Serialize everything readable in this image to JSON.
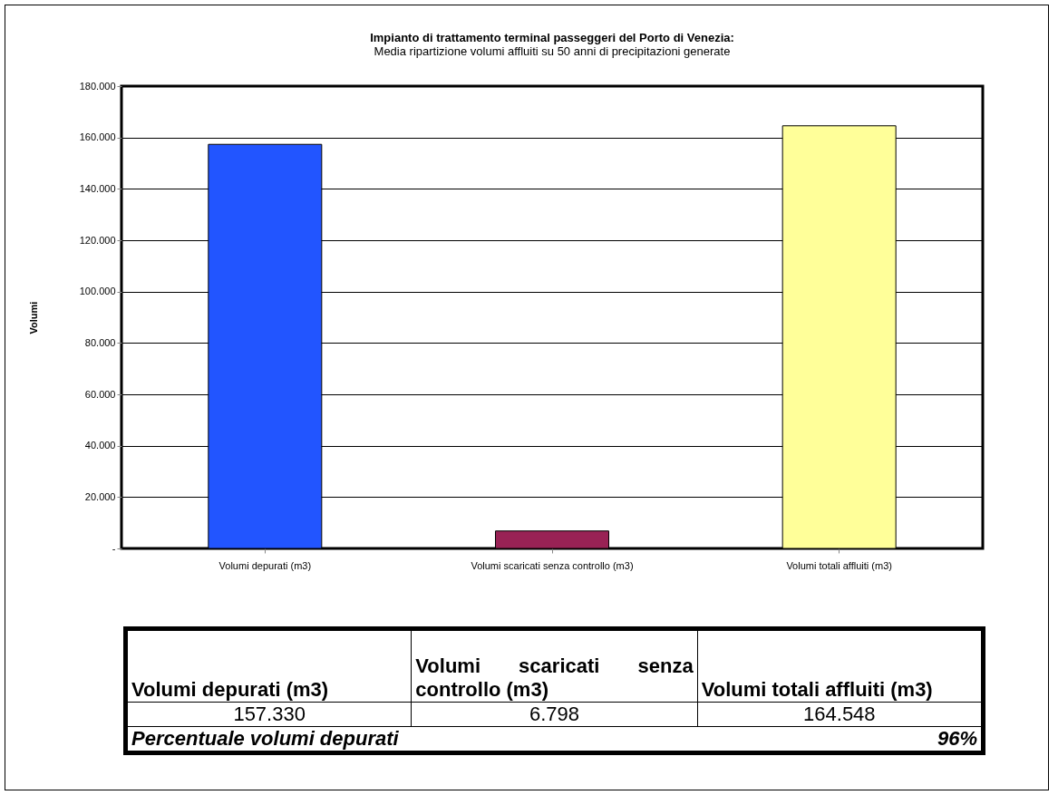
{
  "chart_data": {
    "type": "bar",
    "title": "Impianto di trattamento terminal passeggeri del Porto di Venezia:",
    "subtitle": "Media ripartizione volumi affluiti su 50 anni di precipitazioni generate",
    "ylabel": "Volumi",
    "categories": [
      "Volumi depurati (m3)",
      "Volumi scaricati senza controllo (m3)",
      "Volumi totali affluiti (m3)"
    ],
    "values": [
      157330,
      6798,
      164548
    ],
    "colors": [
      "#2255ff",
      "#992255",
      "#ffff99"
    ],
    "value_labels": [
      "157.330",
      "6.798",
      "164.548"
    ],
    "ylim": [
      0,
      180000
    ],
    "yticks": [
      {
        "value": 0,
        "label": "-"
      },
      {
        "value": 20000,
        "label": "20.000"
      },
      {
        "value": 40000,
        "label": "40.000"
      },
      {
        "value": 60000,
        "label": "60.000"
      },
      {
        "value": 80000,
        "label": "80.000"
      },
      {
        "value": 100000,
        "label": "100.000"
      },
      {
        "value": 120000,
        "label": "120.000"
      },
      {
        "value": 140000,
        "label": "140.000"
      },
      {
        "value": 160000,
        "label": "160.000"
      },
      {
        "value": 180000,
        "label": "180.000"
      }
    ],
    "grid": "y",
    "annotations": [
      "Percentuale volumi depurati",
      "96%"
    ]
  }
}
